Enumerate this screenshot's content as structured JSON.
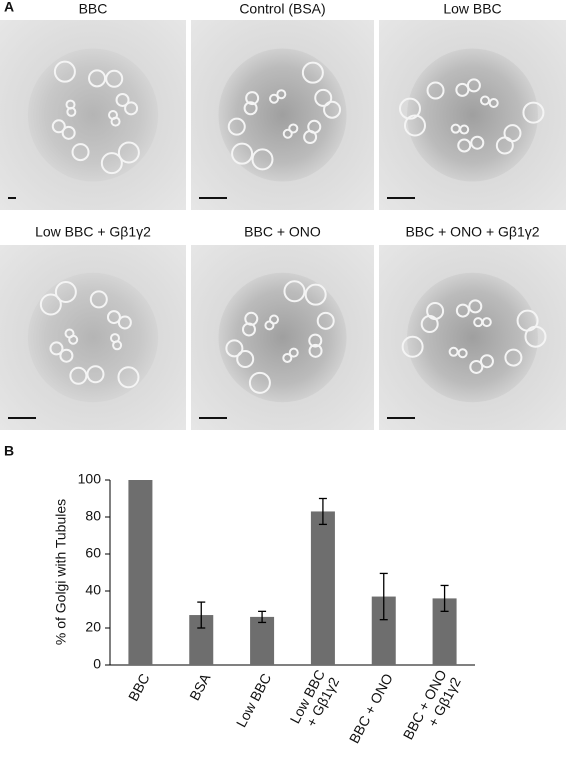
{
  "panel_a": {
    "label": "A",
    "images": [
      {
        "title": "BBC"
      },
      {
        "title": "Control (BSA)"
      },
      {
        "title": "Low BBC"
      },
      {
        "title": "Low BBC + Gβ1γ2"
      },
      {
        "title": "BBC + ONO"
      },
      {
        "title": "BBC + ONO + Gβ1γ2"
      }
    ]
  },
  "panel_b": {
    "label": "B"
  },
  "chart_data": {
    "type": "bar",
    "y_label": "% of Golgi with Tubules",
    "categories": [
      [
        "BBC"
      ],
      [
        "BSA"
      ],
      [
        "Low BBC"
      ],
      [
        "Low BBC",
        "+ Gβ1γ2"
      ],
      [
        "BBC + ONO"
      ],
      [
        "BBC + ONO",
        "+ Gβ1γ2"
      ]
    ],
    "values": [
      100,
      27,
      26,
      83,
      37,
      36
    ],
    "errors": [
      null,
      7,
      3,
      7,
      12.5,
      7
    ],
    "color": "#6e6e6e",
    "ylim": [
      0,
      100
    ],
    "yticks": [
      0,
      20,
      40,
      60,
      80,
      100
    ]
  }
}
